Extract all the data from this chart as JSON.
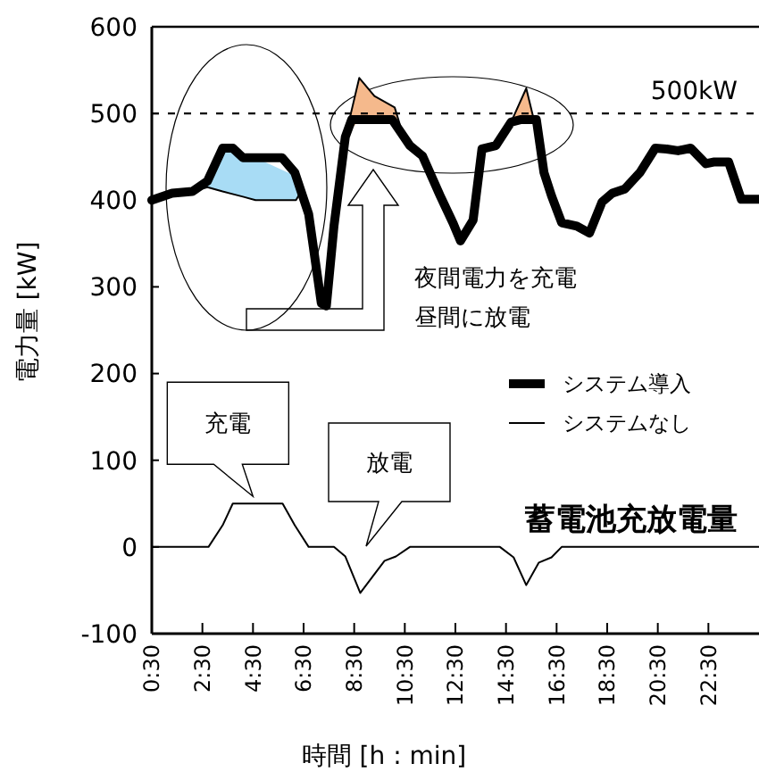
{
  "chart_data": {
    "type": "line",
    "xlabel": "時間 [h : min]",
    "ylabel": "電力量 [kW]",
    "xlim": [
      0.5,
      24.5
    ],
    "ylim": [
      -100,
      600
    ],
    "xticks": [
      {
        "value": 0.5,
        "label": "0:30"
      },
      {
        "value": 2.5,
        "label": "2:30"
      },
      {
        "value": 4.5,
        "label": "4:30"
      },
      {
        "value": 6.5,
        "label": "6:30"
      },
      {
        "value": 8.5,
        "label": "8:30"
      },
      {
        "value": 10.5,
        "label": "10:30"
      },
      {
        "value": 12.5,
        "label": "12:30"
      },
      {
        "value": 14.5,
        "label": "14:30"
      },
      {
        "value": 16.5,
        "label": "16:30"
      },
      {
        "value": 18.5,
        "label": "18:30"
      },
      {
        "value": 20.5,
        "label": "20:30"
      },
      {
        "value": 22.5,
        "label": "22:30"
      }
    ],
    "yticks": [
      -100,
      0,
      100,
      200,
      300,
      400,
      500,
      600
    ],
    "grid": false,
    "legend": "right",
    "marker": "none",
    "line_style": "solid",
    "series": [
      {
        "name": "システム導入",
        "color": "#000000",
        "x": [
          0.5,
          1.3,
          2.1,
          2.7,
          3.3,
          3.7,
          4.1,
          5.65,
          6.15,
          6.7,
          7.2,
          7.4,
          7.7,
          8.15,
          8.4,
          10.0,
          10.7,
          11.2,
          11.9,
          12.4,
          12.7,
          13.2,
          13.55,
          14.1,
          14.7,
          15.1,
          15.7,
          16.0,
          16.3,
          16.7,
          17.3,
          17.8,
          18.3,
          18.7,
          19.2,
          19.8,
          20.4,
          20.85,
          21.3,
          21.8,
          22.4,
          22.7,
          23.3,
          23.8,
          24.5
        ],
        "values": [
          400,
          408,
          410,
          422,
          460,
          460,
          449,
          449,
          432,
          384,
          281,
          278,
          370,
          473,
          493,
          493,
          463,
          451,
          405,
          374,
          353,
          377,
          459,
          463,
          490,
          493,
          493,
          432,
          405,
          374,
          370,
          362,
          398,
          408,
          413,
          432,
          460,
          459,
          457,
          460,
          442,
          444,
          444,
          401,
          401
        ]
      },
      {
        "name": "システムなし",
        "color": "#000000",
        "x": [
          2.1,
          2.7,
          3.3,
          4.1,
          4.6,
          6.2,
          6.4,
          7.0,
          8.15,
          8.7,
          9.3,
          10.1,
          10.4,
          12.0,
          14.7,
          15.3,
          15.6
        ],
        "values": [
          410,
          415,
          410,
          404,
          400,
          400,
          410,
          null,
          473,
          541,
          520,
          507,
          478,
          null,
          490,
          529,
          493
        ]
      },
      {
        "name": "蓄電池充放電量",
        "color": "#000000",
        "x": [
          0.5,
          2.74,
          3.3,
          3.7,
          5.67,
          6.15,
          6.7,
          7.7,
          8.15,
          8.74,
          9.7,
          10.15,
          10.7,
          14.26,
          14.8,
          15.3,
          15.8,
          16.3,
          16.7,
          24.5
        ],
        "values": [
          0,
          0,
          25,
          50,
          50,
          25,
          0,
          0,
          -11,
          -53,
          -16,
          -11,
          0,
          0,
          -12,
          -44,
          -18,
          -12,
          0,
          0
        ]
      }
    ],
    "ref_lines": [
      {
        "axis": "y",
        "value": 500,
        "label": "500kW",
        "line_style": "dashed",
        "color": "#000000"
      }
    ],
    "annotations": [
      "夜間電力を充電",
      "昼間に放電",
      {
        "text": "充電",
        "x": 4.5,
        "y": 50
      },
      "放電"
    ]
  }
}
